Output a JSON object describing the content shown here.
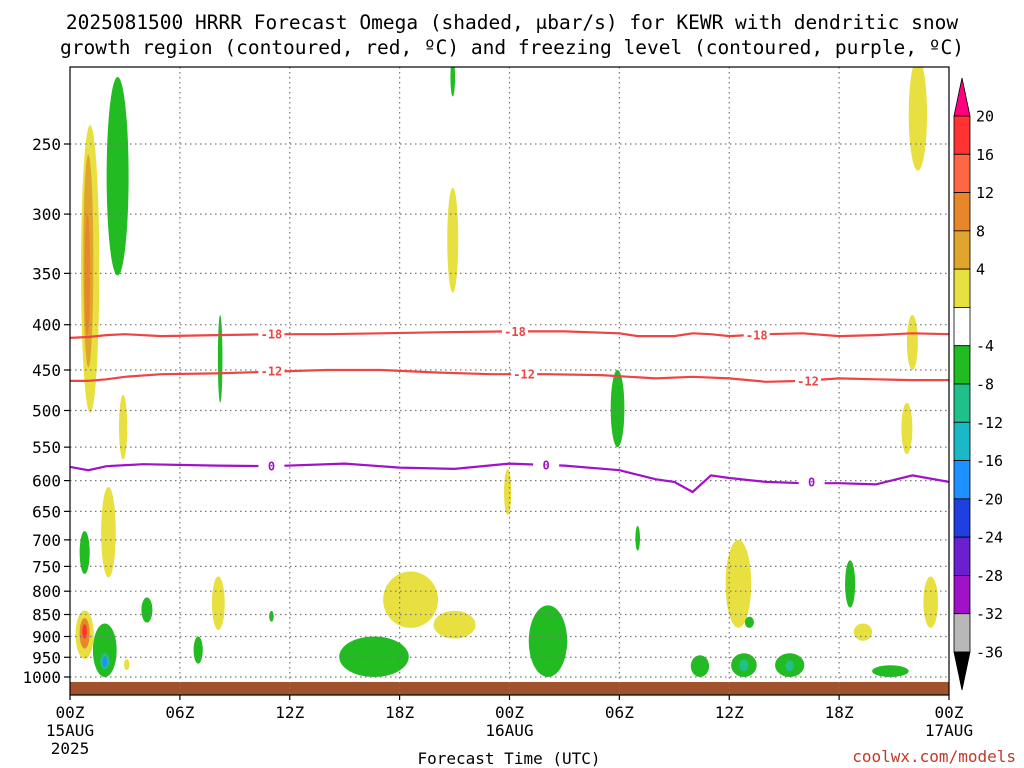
{
  "chart_data": {
    "type": "heatmap",
    "title_line1": "2025081500 HRRR Forecast Omega (shaded, μbar/s) for KEWR with dendritic snow",
    "title_line2": "growth region (contoured, red, ºC) and freezing level (contoured, purple, ºC)",
    "xlabel": "Forecast Time (UTC)",
    "credit": "coolwx.com/models",
    "x_range_hours": [
      0,
      48
    ],
    "y_range_hpa": [
      1025,
      200
    ],
    "x_ticks": [
      {
        "hour": 0,
        "label": "00Z",
        "sub1": "15AUG",
        "sub2": "2025"
      },
      {
        "hour": 6,
        "label": "06Z",
        "sub1": "",
        "sub2": ""
      },
      {
        "hour": 12,
        "label": "12Z",
        "sub1": "",
        "sub2": ""
      },
      {
        "hour": 18,
        "label": "18Z",
        "sub1": "",
        "sub2": ""
      },
      {
        "hour": 24,
        "label": "00Z",
        "sub1": "16AUG",
        "sub2": ""
      },
      {
        "hour": 30,
        "label": "06Z",
        "sub1": "",
        "sub2": ""
      },
      {
        "hour": 36,
        "label": "12Z",
        "sub1": "",
        "sub2": ""
      },
      {
        "hour": 42,
        "label": "18Z",
        "sub1": "",
        "sub2": ""
      },
      {
        "hour": 48,
        "label": "00Z",
        "sub1": "17AUG",
        "sub2": ""
      }
    ],
    "y_ticks": [
      250,
      300,
      350,
      400,
      450,
      500,
      550,
      600,
      650,
      700,
      750,
      800,
      850,
      900,
      950,
      1000
    ],
    "grid": true,
    "colorbar": {
      "labels": [
        "20",
        "16",
        "12",
        "8",
        "4",
        "-4",
        "-8",
        "-12",
        "-16",
        "-20",
        "-24",
        "-28",
        "-32",
        "-36"
      ],
      "bins": [
        "#ff007f",
        "#ff3333",
        "#ff6644",
        "#e8862a",
        "#e0a52c",
        "#e8e040",
        "#ffffff",
        "#22bb22",
        "#1fc08a",
        "#1bb8c8",
        "#1e90ff",
        "#1f3fe0",
        "#6a1fd0",
        "#a012c8",
        "#b8b8b8",
        "#000000"
      ]
    },
    "contours": [
      {
        "level": "-18",
        "color": "#ee4444",
        "points": [
          [
            0,
            414
          ],
          [
            1,
            413
          ],
          [
            2,
            411
          ],
          [
            3,
            410
          ],
          [
            5,
            412
          ],
          [
            8,
            411
          ],
          [
            11,
            410
          ],
          [
            14,
            410
          ],
          [
            17,
            409
          ],
          [
            20,
            408
          ],
          [
            24,
            407
          ],
          [
            27,
            407
          ],
          [
            30,
            409
          ],
          [
            31,
            412
          ],
          [
            33,
            412
          ],
          [
            34,
            409
          ],
          [
            35,
            410
          ],
          [
            36,
            412
          ],
          [
            38,
            410
          ],
          [
            40,
            409
          ],
          [
            42,
            412
          ],
          [
            44,
            411
          ],
          [
            46,
            409
          ],
          [
            48,
            410
          ]
        ],
        "labels": [
          [
            11,
            410
          ],
          [
            24.3,
            407
          ],
          [
            37.5,
            411
          ]
        ]
      },
      {
        "level": "-12",
        "color": "#ee4444",
        "points": [
          [
            0,
            463
          ],
          [
            1,
            463
          ],
          [
            2,
            461
          ],
          [
            3,
            458
          ],
          [
            5,
            455
          ],
          [
            8,
            454
          ],
          [
            11,
            452
          ],
          [
            14,
            450
          ],
          [
            17,
            450
          ],
          [
            20,
            453
          ],
          [
            23,
            455
          ],
          [
            26,
            455
          ],
          [
            29,
            456
          ],
          [
            32,
            460
          ],
          [
            34,
            458
          ],
          [
            36,
            460
          ],
          [
            38,
            464
          ],
          [
            40,
            463
          ],
          [
            42,
            460
          ],
          [
            44,
            461
          ],
          [
            46,
            462
          ],
          [
            48,
            462
          ]
        ],
        "labels": [
          [
            11,
            451
          ],
          [
            24.8,
            455
          ],
          [
            40.3,
            463
          ]
        ]
      },
      {
        "level": "0",
        "color": "#a012c8",
        "points": [
          [
            0,
            579
          ],
          [
            1,
            584
          ],
          [
            2,
            578
          ],
          [
            4,
            575
          ],
          [
            8,
            577
          ],
          [
            11,
            578
          ],
          [
            15,
            574
          ],
          [
            18,
            580
          ],
          [
            21,
            582
          ],
          [
            24,
            574
          ],
          [
            27,
            577
          ],
          [
            30,
            584
          ],
          [
            32,
            598
          ],
          [
            33,
            602
          ],
          [
            34,
            618
          ],
          [
            35,
            592
          ],
          [
            36,
            596
          ],
          [
            38,
            602
          ],
          [
            40,
            604
          ],
          [
            42,
            604
          ],
          [
            44,
            606
          ],
          [
            46,
            592
          ],
          [
            48,
            602
          ]
        ],
        "labels": [
          [
            11,
            578
          ],
          [
            26,
            576
          ],
          [
            40.5,
            602
          ]
        ]
      }
    ],
    "omega_features": [
      {
        "hour": 1.1,
        "hpa_top": 238,
        "hpa_bottom": 503,
        "width_h": 1.0,
        "color": "#e8e040"
      },
      {
        "hour": 1.0,
        "hpa_top": 257,
        "hpa_bottom": 447,
        "width_h": 0.55,
        "color": "#e0a52c"
      },
      {
        "hour": 0.95,
        "hpa_top": 300,
        "hpa_bottom": 412,
        "width_h": 0.3,
        "color": "#e8862a"
      },
      {
        "hour": 2.6,
        "hpa_top": 210,
        "hpa_bottom": 352,
        "width_h": 1.2,
        "color": "#22bb22"
      },
      {
        "hour": 2.9,
        "hpa_top": 480,
        "hpa_bottom": 568,
        "width_h": 0.45,
        "color": "#e8e040"
      },
      {
        "hour": 2.1,
        "hpa_top": 610,
        "hpa_bottom": 772,
        "width_h": 0.8,
        "color": "#e8e040"
      },
      {
        "hour": 0.8,
        "hpa_top": 684,
        "hpa_bottom": 765,
        "width_h": 0.55,
        "color": "#22bb22"
      },
      {
        "hour": 4.2,
        "hpa_top": 813,
        "hpa_bottom": 868,
        "width_h": 0.6,
        "color": "#22bb22"
      },
      {
        "hour": 0.8,
        "hpa_top": 841,
        "hpa_bottom": 954,
        "width_h": 1.0,
        "color": "#e8e040"
      },
      {
        "hour": 0.8,
        "hpa_top": 858,
        "hpa_bottom": 929,
        "width_h": 0.55,
        "color": "#e8862a"
      },
      {
        "hour": 0.8,
        "hpa_top": 872,
        "hpa_bottom": 905,
        "width_h": 0.25,
        "color": "#ff3333"
      },
      {
        "hour": 1.9,
        "hpa_top": 870,
        "hpa_bottom": 1000,
        "width_h": 1.3,
        "color": "#22bb22"
      },
      {
        "hour": 1.9,
        "hpa_top": 940,
        "hpa_bottom": 980,
        "width_h": 0.5,
        "color": "#1fc08a"
      },
      {
        "hour": 1.9,
        "hpa_top": 948,
        "hpa_bottom": 975,
        "width_h": 0.25,
        "color": "#1e90ff"
      },
      {
        "hour": 3.1,
        "hpa_top": 955,
        "hpa_bottom": 982,
        "width_h": 0.3,
        "color": "#e8e040"
      },
      {
        "hour": 8.1,
        "hpa_top": 770,
        "hpa_bottom": 885,
        "width_h": 0.7,
        "color": "#e8e040"
      },
      {
        "hour": 7.0,
        "hpa_top": 900,
        "hpa_bottom": 966,
        "width_h": 0.5,
        "color": "#22bb22"
      },
      {
        "hour": 8.2,
        "hpa_top": 390,
        "hpa_bottom": 490,
        "width_h": 0.25,
        "color": "#22bb22"
      },
      {
        "hour": 11.0,
        "hpa_top": 842,
        "hpa_bottom": 866,
        "width_h": 0.25,
        "color": "#22bb22"
      },
      {
        "hour": 16.6,
        "hpa_top": 900,
        "hpa_bottom": 1000,
        "width_h": 3.8,
        "color": "#22bb22"
      },
      {
        "hour": 18.6,
        "hpa_top": 760,
        "hpa_bottom": 880,
        "width_h": 3.0,
        "color": "#e8e040"
      },
      {
        "hour": 21.0,
        "hpa_top": 842,
        "hpa_bottom": 905,
        "width_h": 2.3,
        "color": "#e8e040"
      },
      {
        "hour": 20.9,
        "hpa_top": 280,
        "hpa_bottom": 368,
        "width_h": 0.6,
        "color": "#e8e040"
      },
      {
        "hour": 20.9,
        "hpa_top": 200,
        "hpa_bottom": 221,
        "width_h": 0.25,
        "color": "#22bb22"
      },
      {
        "hour": 23.9,
        "hpa_top": 582,
        "hpa_bottom": 656,
        "width_h": 0.4,
        "color": "#e8e040"
      },
      {
        "hour": 26.1,
        "hpa_top": 830,
        "hpa_bottom": 1000,
        "width_h": 2.1,
        "color": "#22bb22"
      },
      {
        "hour": 29.9,
        "hpa_top": 450,
        "hpa_bottom": 550,
        "width_h": 0.75,
        "color": "#22bb22"
      },
      {
        "hour": 31.0,
        "hpa_top": 675,
        "hpa_bottom": 720,
        "width_h": 0.25,
        "color": "#22bb22"
      },
      {
        "hour": 34.4,
        "hpa_top": 945,
        "hpa_bottom": 1000,
        "width_h": 1.0,
        "color": "#22bb22"
      },
      {
        "hour": 36.5,
        "hpa_top": 700,
        "hpa_bottom": 880,
        "width_h": 1.4,
        "color": "#e8e040"
      },
      {
        "hour": 37.1,
        "hpa_top": 855,
        "hpa_bottom": 880,
        "width_h": 0.5,
        "color": "#22bb22"
      },
      {
        "hour": 36.8,
        "hpa_top": 940,
        "hpa_bottom": 1000,
        "width_h": 1.4,
        "color": "#22bb22"
      },
      {
        "hour": 36.8,
        "hpa_top": 955,
        "hpa_bottom": 985,
        "width_h": 0.5,
        "color": "#1fc08a"
      },
      {
        "hour": 39.3,
        "hpa_top": 940,
        "hpa_bottom": 1000,
        "width_h": 1.6,
        "color": "#22bb22"
      },
      {
        "hour": 39.3,
        "hpa_top": 958,
        "hpa_bottom": 985,
        "width_h": 0.45,
        "color": "#1fc08a"
      },
      {
        "hour": 42.6,
        "hpa_top": 738,
        "hpa_bottom": 835,
        "width_h": 0.55,
        "color": "#22bb22"
      },
      {
        "hour": 43.3,
        "hpa_top": 870,
        "hpa_bottom": 910,
        "width_h": 1.0,
        "color": "#e8e040"
      },
      {
        "hour": 45.7,
        "hpa_top": 490,
        "hpa_bottom": 560,
        "width_h": 0.6,
        "color": "#e8e040"
      },
      {
        "hour": 46.0,
        "hpa_top": 390,
        "hpa_bottom": 450,
        "width_h": 0.6,
        "color": "#e8e040"
      },
      {
        "hour": 44.8,
        "hpa_top": 970,
        "hpa_bottom": 1000,
        "width_h": 2.0,
        "color": "#22bb22"
      },
      {
        "hour": 47.0,
        "hpa_top": 770,
        "hpa_bottom": 880,
        "width_h": 0.8,
        "color": "#e8e040"
      },
      {
        "hour": 46.3,
        "hpa_top": 200,
        "hpa_bottom": 268,
        "width_h": 1.0,
        "color": "#e8e040"
      }
    ],
    "terrain_color": "#a0522d"
  }
}
